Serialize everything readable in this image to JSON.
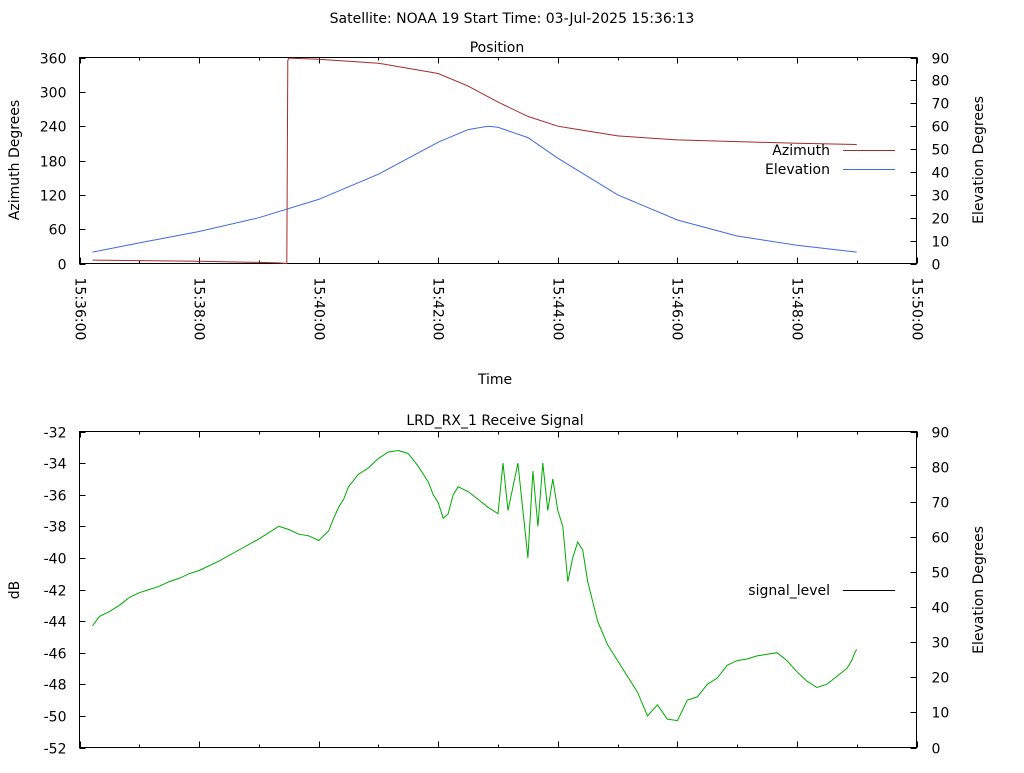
{
  "header": {
    "title": "Satellite: NOAA 19    Start Time: 03-Jul-2025 15:36:13"
  },
  "chart_data": [
    {
      "type": "line",
      "title": "Position",
      "xlabel": "Time",
      "ylabel": "Azimuth Degrees",
      "y2label": "Elevation Degrees",
      "xlim": [
        0,
        840
      ],
      "ylim": [
        0,
        360
      ],
      "y2lim": [
        0,
        90
      ],
      "x_ticks": [
        0,
        120,
        240,
        360,
        480,
        600,
        720,
        840
      ],
      "x_tick_labels": [
        "15:36:00",
        "15:38:00",
        "15:40:00",
        "15:42:00",
        "15:44:00",
        "15:46:00",
        "15:48:00",
        "15:50:00"
      ],
      "y_ticks": [
        0,
        60,
        120,
        180,
        240,
        300,
        360
      ],
      "y2_ticks": [
        0,
        10,
        20,
        30,
        40,
        50,
        60,
        70,
        80,
        90
      ],
      "legend_position": "right",
      "grid": false,
      "series": [
        {
          "name": "Azimuth",
          "axis": "left",
          "color": "#a52a2a",
          "x": [
            13,
            60,
            120,
            180,
            200,
            208,
            209,
            210,
            240,
            300,
            360,
            390,
            420,
            450,
            480,
            540,
            600,
            660,
            720,
            780
          ],
          "y": [
            6,
            5,
            4,
            2,
            1,
            0,
            355,
            359,
            357,
            350,
            332,
            310,
            282,
            257,
            240,
            223,
            216,
            213,
            210,
            208
          ]
        },
        {
          "name": "Elevation",
          "axis": "right",
          "color": "#4169e1",
          "x": [
            13,
            60,
            120,
            180,
            240,
            300,
            360,
            390,
            410,
            420,
            450,
            480,
            540,
            600,
            660,
            720,
            780
          ],
          "y": [
            5,
            9,
            14,
            20,
            28,
            39,
            53,
            58.5,
            60,
            59.5,
            55,
            46,
            30,
            19,
            12,
            8,
            5
          ]
        }
      ]
    },
    {
      "type": "line",
      "title": "LRD_RX_1 Receive Signal",
      "xlabel": "",
      "ylabel": "dB",
      "y2label": "Elevation Degrees",
      "xlim": [
        0,
        840
      ],
      "ylim": [
        -52,
        -32
      ],
      "y2lim": [
        0,
        90
      ],
      "x_ticks": [
        0,
        120,
        240,
        360,
        480,
        600,
        720,
        840
      ],
      "y_ticks": [
        -52,
        -50,
        -48,
        -46,
        -44,
        -42,
        -40,
        -38,
        -36,
        -34,
        -32
      ],
      "y_tick_labels": [
        "-52",
        "-50",
        "-48",
        "-46",
        "-44",
        "-42",
        "-40",
        "-38",
        "-36",
        "-34",
        "-32"
      ],
      "y2_ticks": [
        0,
        10,
        20,
        30,
        40,
        50,
        60,
        70,
        80,
        90
      ],
      "legend_position": "right",
      "grid": false,
      "series": [
        {
          "name": "signal_level",
          "axis": "left",
          "color": "#00aa00",
          "x": [
            13,
            20,
            30,
            40,
            50,
            60,
            70,
            80,
            90,
            100,
            110,
            120,
            140,
            160,
            180,
            200,
            210,
            220,
            230,
            240,
            250,
            255,
            260,
            265,
            270,
            280,
            290,
            300,
            310,
            320,
            330,
            340,
            350,
            355,
            360,
            365,
            370,
            375,
            380,
            390,
            400,
            410,
            420,
            425,
            430,
            440,
            450,
            455,
            460,
            465,
            470,
            475,
            480,
            485,
            490,
            495,
            500,
            505,
            510,
            520,
            530,
            540,
            550,
            560,
            570,
            580,
            590,
            600,
            610,
            620,
            630,
            640,
            650,
            660,
            670,
            680,
            690,
            700,
            710,
            720,
            730,
            740,
            750,
            760,
            770,
            775,
            778,
            780
          ],
          "y": [
            -44.3,
            -43.7,
            -43.4,
            -43.0,
            -42.5,
            -42.2,
            -42.0,
            -41.8,
            -41.5,
            -41.3,
            -41.0,
            -40.8,
            -40.2,
            -39.5,
            -38.8,
            -38.0,
            -38.2,
            -38.5,
            -38.6,
            -38.9,
            -38.3,
            -37.5,
            -36.8,
            -36.3,
            -35.5,
            -34.7,
            -34.3,
            -33.7,
            -33.3,
            -33.2,
            -33.4,
            -34.2,
            -35.2,
            -36.0,
            -36.5,
            -37.5,
            -37.2,
            -36.0,
            -35.5,
            -35.8,
            -36.3,
            -36.8,
            -37.2,
            -34.0,
            -37.0,
            -34.0,
            -40.0,
            -34.5,
            -38.0,
            -34.0,
            -37.0,
            -35.0,
            -37.0,
            -38.0,
            -41.5,
            -40.0,
            -39.0,
            -39.5,
            -41.5,
            -44.0,
            -45.5,
            -46.5,
            -47.5,
            -48.5,
            -50.0,
            -49.3,
            -50.2,
            -50.3,
            -49.0,
            -48.8,
            -48.0,
            -47.6,
            -46.8,
            -46.5,
            -46.4,
            -46.2,
            -46.1,
            -46.0,
            -46.5,
            -47.2,
            -47.8,
            -48.2,
            -48.0,
            -47.5,
            -47.0,
            -46.5,
            -46.0,
            -45.8
          ]
        }
      ]
    }
  ]
}
